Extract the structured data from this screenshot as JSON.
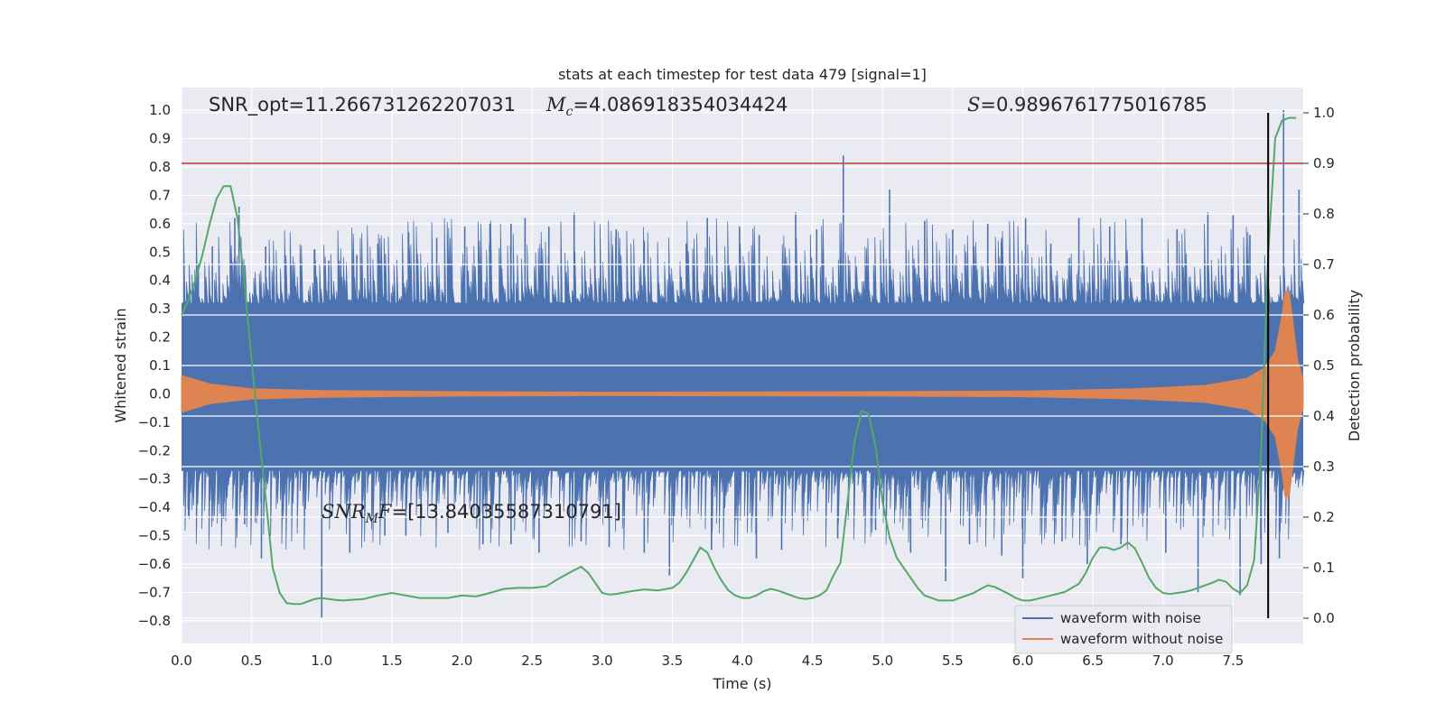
{
  "chart_data": {
    "type": "line",
    "title": "stats at each timestep for test data 479 [signal=1]",
    "xlabel": "Time (s)",
    "ylabel": "Whitened strain",
    "y2label": "Detection probability",
    "xlim": [
      0.0,
      8.0
    ],
    "ylim": [
      -0.88,
      1.08
    ],
    "y2lim": [
      -0.05,
      1.05
    ],
    "x_ticks": [
      "0.0",
      "0.5",
      "1.0",
      "1.5",
      "2.0",
      "2.5",
      "3.0",
      "3.5",
      "4.0",
      "4.5",
      "5.0",
      "5.5",
      "6.0",
      "6.5",
      "7.0",
      "7.5"
    ],
    "y_ticks": [
      "1.0",
      "0.9",
      "0.8",
      "0.7",
      "0.6",
      "0.5",
      "0.4",
      "0.3",
      "0.2",
      "0.1",
      "0.0",
      "−0.1",
      "−0.2",
      "−0.3",
      "−0.4",
      "−0.5",
      "−0.6",
      "−0.7",
      "−0.8"
    ],
    "y2_ticks": [
      "1.0",
      "0.9",
      "0.8",
      "0.7",
      "0.6",
      "0.5",
      "0.4",
      "0.3",
      "0.2",
      "0.1",
      "0.0"
    ],
    "grid": true,
    "background": "#eaeaf2",
    "annotations": {
      "snr_opt": "SNR_opt=11.266731262207031",
      "mc_symbol": "M",
      "mc_sub": "c",
      "mc_value": "=4.086918354034424",
      "s_symbol": "S",
      "s_value": "=0.9896761775016785",
      "snrmf_symbol": "SNR",
      "snrmf_sub": "M",
      "snrmf_sym2": "F",
      "snrmf_value": "=[13.84035587310791]"
    },
    "threshold": {
      "y2": 0.9,
      "color": "#c44e52"
    },
    "merger_time": 7.75,
    "series": [
      {
        "name": "waveform with noise",
        "color": "#4c72b0",
        "band": [
          -0.27,
          0.32
        ],
        "spikes_up": [
          [
            0.12,
            0.46
          ],
          [
            0.22,
            0.52
          ],
          [
            0.38,
            0.62
          ],
          [
            0.41,
            0.66
          ],
          [
            0.6,
            0.52
          ],
          [
            0.95,
            0.51
          ],
          [
            1.05,
            0.47
          ],
          [
            1.25,
            0.49
          ],
          [
            1.4,
            0.53
          ],
          [
            1.62,
            0.57
          ],
          [
            1.82,
            0.55
          ],
          [
            2.02,
            0.59
          ],
          [
            2.2,
            0.6
          ],
          [
            2.35,
            0.6
          ],
          [
            2.45,
            0.62
          ],
          [
            2.62,
            0.59
          ],
          [
            2.8,
            0.64
          ],
          [
            3.1,
            0.58
          ],
          [
            3.3,
            0.54
          ],
          [
            3.6,
            0.53
          ],
          [
            3.75,
            0.62
          ],
          [
            3.98,
            0.59
          ],
          [
            4.12,
            0.56
          ],
          [
            4.38,
            0.64
          ],
          [
            4.53,
            0.58
          ],
          [
            4.72,
            0.84
          ],
          [
            5.05,
            0.72
          ],
          [
            5.3,
            0.61
          ],
          [
            5.5,
            0.58
          ],
          [
            5.75,
            0.6
          ],
          [
            5.85,
            0.55
          ],
          [
            6.02,
            0.62
          ],
          [
            6.2,
            0.53
          ],
          [
            6.4,
            0.62
          ],
          [
            6.62,
            0.59
          ],
          [
            6.85,
            0.62
          ],
          [
            7.1,
            0.58
          ],
          [
            7.32,
            0.64
          ],
          [
            7.5,
            0.63
          ],
          [
            7.62,
            0.56
          ],
          [
            7.86,
            1.0
          ],
          [
            7.97,
            0.72
          ]
        ],
        "spikes_down": [
          [
            0.05,
            -0.43
          ],
          [
            0.3,
            -0.44
          ],
          [
            0.45,
            -0.46
          ],
          [
            0.57,
            -0.58
          ],
          [
            1.0,
            -0.79
          ],
          [
            1.2,
            -0.56
          ],
          [
            1.45,
            -0.5
          ],
          [
            1.6,
            -0.5
          ],
          [
            1.9,
            -0.49
          ],
          [
            2.15,
            -0.53
          ],
          [
            2.35,
            -0.53
          ],
          [
            2.55,
            -0.56
          ],
          [
            2.85,
            -0.52
          ],
          [
            3.05,
            -0.54
          ],
          [
            3.3,
            -0.56
          ],
          [
            3.48,
            -0.64
          ],
          [
            3.78,
            -0.55
          ],
          [
            4.1,
            -0.58
          ],
          [
            4.28,
            -0.55
          ],
          [
            4.68,
            -0.51
          ],
          [
            4.95,
            -0.48
          ],
          [
            5.2,
            -0.56
          ],
          [
            5.45,
            -0.66
          ],
          [
            5.62,
            -0.53
          ],
          [
            5.85,
            -0.57
          ],
          [
            6.0,
            -0.65
          ],
          [
            6.28,
            -0.52
          ],
          [
            6.46,
            -0.6
          ],
          [
            6.7,
            -0.53
          ],
          [
            7.02,
            -0.56
          ],
          [
            7.25,
            -0.7
          ],
          [
            7.55,
            -0.71
          ],
          [
            7.7,
            -0.6
          ],
          [
            7.83,
            -0.58
          ]
        ]
      },
      {
        "name": "waveform without noise",
        "color": "#dd8452",
        "amplitude": [
          [
            0.0,
            0.065
          ],
          [
            0.2,
            0.035
          ],
          [
            0.5,
            0.018
          ],
          [
            1.0,
            0.012
          ],
          [
            2.0,
            0.008
          ],
          [
            3.0,
            0.006
          ],
          [
            4.0,
            0.007
          ],
          [
            5.0,
            0.008
          ],
          [
            6.0,
            0.01
          ],
          [
            6.8,
            0.018
          ],
          [
            7.3,
            0.03
          ],
          [
            7.6,
            0.055
          ],
          [
            7.72,
            0.09
          ],
          [
            7.8,
            0.15
          ],
          [
            7.85,
            0.28
          ],
          [
            7.87,
            0.36
          ],
          [
            7.9,
            0.36
          ],
          [
            7.92,
            0.28
          ],
          [
            7.96,
            0.12
          ],
          [
            8.0,
            0.05
          ]
        ],
        "chirp_dip": [
          7.88,
          -0.38
        ]
      },
      {
        "name": "Detection probability",
        "axis": "y2",
        "color": "#55a868",
        "x": [
          0.0,
          0.05,
          0.1,
          0.15,
          0.2,
          0.25,
          0.3,
          0.35,
          0.4,
          0.45,
          0.5,
          0.55,
          0.6,
          0.65,
          0.7,
          0.75,
          0.8,
          0.85,
          0.9,
          0.95,
          1.0,
          1.05,
          1.1,
          1.15,
          1.2,
          1.3,
          1.4,
          1.5,
          1.6,
          1.7,
          1.8,
          1.9,
          2.0,
          2.1,
          2.2,
          2.3,
          2.4,
          2.5,
          2.6,
          2.7,
          2.8,
          2.85,
          2.9,
          2.95,
          3.0,
          3.05,
          3.1,
          3.2,
          3.3,
          3.4,
          3.5,
          3.55,
          3.6,
          3.65,
          3.7,
          3.75,
          3.8,
          3.85,
          3.9,
          3.95,
          4.0,
          4.05,
          4.1,
          4.15,
          4.2,
          4.25,
          4.3,
          4.35,
          4.4,
          4.45,
          4.5,
          4.55,
          4.6,
          4.65,
          4.7,
          4.75,
          4.8,
          4.85,
          4.9,
          4.95,
          5.0,
          5.05,
          5.1,
          5.15,
          5.2,
          5.25,
          5.3,
          5.35,
          5.4,
          5.45,
          5.5,
          5.55,
          5.6,
          5.65,
          5.7,
          5.75,
          5.8,
          5.85,
          5.9,
          5.95,
          6.0,
          6.05,
          6.1,
          6.2,
          6.3,
          6.4,
          6.45,
          6.5,
          6.55,
          6.6,
          6.65,
          6.7,
          6.75,
          6.8,
          6.85,
          6.9,
          6.95,
          7.0,
          7.05,
          7.1,
          7.15,
          7.2,
          7.25,
          7.3,
          7.35,
          7.4,
          7.45,
          7.5,
          7.55,
          7.6,
          7.65,
          7.7,
          7.75,
          7.8,
          7.85,
          7.9,
          7.95
        ],
        "y": [
          0.6,
          0.63,
          0.67,
          0.72,
          0.78,
          0.83,
          0.855,
          0.855,
          0.79,
          0.66,
          0.51,
          0.37,
          0.24,
          0.1,
          0.05,
          0.03,
          0.028,
          0.028,
          0.033,
          0.038,
          0.04,
          0.038,
          0.036,
          0.035,
          0.036,
          0.038,
          0.045,
          0.05,
          0.045,
          0.04,
          0.04,
          0.04,
          0.045,
          0.043,
          0.05,
          0.058,
          0.06,
          0.06,
          0.063,
          0.08,
          0.095,
          0.102,
          0.09,
          0.07,
          0.05,
          0.047,
          0.048,
          0.053,
          0.057,
          0.055,
          0.06,
          0.07,
          0.09,
          0.115,
          0.14,
          0.13,
          0.1,
          0.075,
          0.055,
          0.045,
          0.04,
          0.04,
          0.045,
          0.053,
          0.058,
          0.055,
          0.05,
          0.045,
          0.04,
          0.038,
          0.04,
          0.045,
          0.055,
          0.085,
          0.11,
          0.23,
          0.35,
          0.41,
          0.405,
          0.34,
          0.23,
          0.16,
          0.12,
          0.1,
          0.08,
          0.06,
          0.045,
          0.04,
          0.035,
          0.035,
          0.035,
          0.04,
          0.045,
          0.05,
          0.058,
          0.065,
          0.062,
          0.055,
          0.048,
          0.04,
          0.035,
          0.035,
          0.038,
          0.045,
          0.052,
          0.068,
          0.09,
          0.12,
          0.14,
          0.14,
          0.135,
          0.14,
          0.15,
          0.138,
          0.11,
          0.08,
          0.06,
          0.05,
          0.048,
          0.05,
          0.052,
          0.055,
          0.06,
          0.065,
          0.07,
          0.076,
          0.072,
          0.058,
          0.05,
          0.065,
          0.115,
          0.33,
          0.72,
          0.95,
          0.985,
          0.99,
          0.99
        ]
      }
    ]
  },
  "legend": {
    "items": [
      {
        "label": "waveform with noise",
        "color": "#4c72b0"
      },
      {
        "label": "waveform without noise",
        "color": "#dd8452"
      }
    ]
  }
}
